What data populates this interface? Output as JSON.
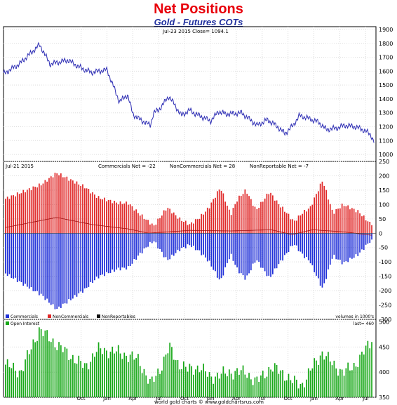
{
  "header": {
    "title": "Net Positions",
    "subtitle": "Gold - Futures COTs"
  },
  "colors": {
    "price_line": "#2d2db4",
    "commercials": "#2030d8",
    "noncommercials": "#e02828",
    "nonreportables": "#111111",
    "open_interest": "#18a818",
    "title": "#e8000b",
    "subtitle": "#1f2f9f"
  },
  "chart_data": [
    {
      "type": "line",
      "panel": "price",
      "info_label": "Jul-23  2015    Close= 1094.1",
      "ylim": [
        950,
        1920
      ],
      "y_ticks": [
        "1900",
        "1800",
        "1700",
        "1600",
        "1500",
        "1400",
        "1300",
        "1200",
        "1100",
        "1000"
      ],
      "y_tick_values": [
        1900,
        1800,
        1700,
        1600,
        1500,
        1400,
        1300,
        1200,
        1100,
        1000
      ],
      "x_labels": [
        "Oct",
        "Jan",
        "Apr",
        "Jul",
        "Oct",
        "Jan",
        "Apr",
        "Jul",
        "Oct",
        "Jan",
        "Apr",
        "Jul"
      ],
      "x_label_years": [
        2011.75,
        2012.0,
        2012.25,
        2012.5,
        2012.75,
        2013.0,
        2013.25,
        2013.5,
        2013.75,
        2014.0,
        2014.25,
        2014.5
      ],
      "series": [
        {
          "x": [
            2011.0,
            2011.15,
            2011.35,
            2011.45,
            2011.62,
            2011.73,
            2011.85,
            2012.0,
            2012.12,
            2012.2,
            2012.25,
            2012.32,
            2012.42,
            2012.45,
            2012.5,
            2012.6,
            2012.72,
            2012.8,
            2012.86,
            2012.95,
            2013.0,
            2013.08,
            2013.15,
            2013.3,
            2013.45,
            2013.55,
            2013.65,
            2013.72,
            2013.8,
            2013.86,
            2013.95,
            2014.05,
            2014.12,
            2014.22,
            2014.3,
            2014.4,
            2014.5,
            2014.55,
            2014.58
          ],
          "values": [
            1580,
            1650,
            1790,
            1650,
            1680,
            1630,
            1590,
            1610,
            1380,
            1430,
            1290,
            1250,
            1210,
            1300,
            1320,
            1420,
            1280,
            1320,
            1290,
            1260,
            1240,
            1310,
            1290,
            1300,
            1210,
            1250,
            1200,
            1150,
            1210,
            1280,
            1260,
            1230,
            1180,
            1190,
            1210,
            1200,
            1170,
            1140,
            1095
          ]
        }
      ]
    },
    {
      "type": "bar",
      "panel": "net_positions",
      "date_label": "Jul-21  2015",
      "net_labels": [
        "Commercials Net = -22",
        "NonCommercials Net = 28",
        "NonReportable Net = -7"
      ],
      "ylim": [
        -300,
        250
      ],
      "y_ticks": [
        "250",
        "200",
        "150",
        "100",
        "50",
        "0",
        "-50",
        "-100",
        "-150",
        "-200",
        "-250",
        "-300"
      ],
      "y_tick_values": [
        250,
        200,
        150,
        100,
        50,
        0,
        -50,
        -100,
        -150,
        -200,
        -250,
        -300
      ],
      "legend": [
        "Commercials",
        "NonCommercials",
        "NonReportables"
      ],
      "units_note": "volumes in 1000's",
      "noncommercials_anchor_x": [
        2011.0,
        2011.35,
        2011.5,
        2011.78,
        2011.9,
        2012.1,
        2012.2,
        2012.3,
        2012.45,
        2012.58,
        2012.7,
        2012.8,
        2012.9,
        2012.99,
        2013.1,
        2013.2,
        2013.27,
        2013.35,
        2013.45,
        2013.58,
        2013.65,
        2013.75,
        2013.82,
        2013.9,
        2013.98,
        2014.1,
        2014.2,
        2014.3,
        2014.45,
        2014.58
      ],
      "noncommercials_anchor_values": [
        120,
        170,
        210,
        160,
        125,
        105,
        105,
        70,
        25,
        90,
        50,
        30,
        55,
        90,
        160,
        65,
        120,
        150,
        80,
        145,
        110,
        70,
        40,
        70,
        90,
        185,
        70,
        100,
        75,
        28
      ],
      "nonreportables_anchor_x": [
        2011.0,
        2011.5,
        2011.85,
        2012.2,
        2012.4,
        2012.8,
        2013.2,
        2013.6,
        2013.8,
        2014.0,
        2014.3,
        2014.58
      ],
      "nonreportables_anchor_values": [
        20,
        55,
        30,
        15,
        0,
        10,
        8,
        12,
        -5,
        12,
        5,
        -7
      ],
      "commercials_last": -22
    },
    {
      "type": "bar",
      "panel": "open_interest",
      "legend": [
        "Open Interest"
      ],
      "last_label": "last= 460",
      "ylim": [
        350,
        505
      ],
      "y_ticks": [
        "500",
        "450",
        "400",
        "350"
      ],
      "y_tick_values": [
        500,
        450,
        400,
        350
      ],
      "anchor_x": [
        2011.0,
        2011.15,
        2011.33,
        2011.5,
        2011.62,
        2011.78,
        2011.9,
        2012.1,
        2012.3,
        2012.42,
        2012.52,
        2012.6,
        2012.68,
        2012.78,
        2012.9,
        2013.0,
        2013.1,
        2013.2,
        2013.35,
        2013.45,
        2013.6,
        2013.7,
        2013.82,
        2013.9,
        2014.0,
        2014.1,
        2014.2,
        2014.3,
        2014.4,
        2014.5,
        2014.58
      ],
      "anchor_values": [
        415,
        400,
        485,
        455,
        435,
        410,
        445,
        440,
        425,
        375,
        410,
        450,
        420,
        405,
        410,
        390,
        395,
        400,
        400,
        380,
        410,
        400,
        380,
        375,
        410,
        440,
        415,
        400,
        410,
        440,
        460
      ]
    }
  ],
  "footer": {
    "credit": "world gold charts © www.goldchartsrus.com"
  }
}
